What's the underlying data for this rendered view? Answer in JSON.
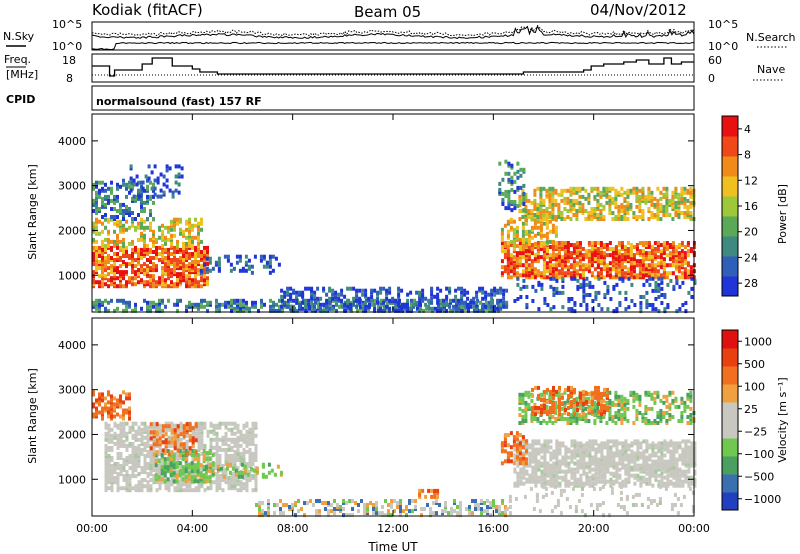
{
  "header": {
    "station": "Kodiak (fitACF)",
    "beam": "Beam 05",
    "date": "04/Nov/2012",
    "nsky_label": "N.Sky",
    "nsearch_label": "N.Search",
    "freq_label_1": "Freq.",
    "freq_label_2": "[MHz]",
    "nave_label": "Nave",
    "cpid_label": "CPID",
    "cpid_value": "normalsound (fast) 157 RF",
    "noise_ticks_left": [
      "10^5",
      "10^0"
    ],
    "noise_ticks_right": [
      "10^5",
      "10^0"
    ],
    "freq_ticks": [
      "18",
      "8"
    ],
    "nave_ticks": [
      "60",
      "0"
    ]
  },
  "chart_data": [
    {
      "type": "heatmap",
      "name": "power",
      "ylabel": "Slant Range [km]",
      "yticks": [
        1000,
        2000,
        3000,
        4000
      ],
      "ylim": [
        180,
        4600
      ],
      "xticks": [
        "00:00",
        "04:00",
        "08:00",
        "12:00",
        "16:00",
        "20:00",
        "00:00"
      ],
      "xlim": [
        0,
        24
      ],
      "colorbar_label": "Power [dB]",
      "colorbar_ticks": [
        "4",
        "8",
        "12",
        "16",
        "20",
        "24",
        "28"
      ],
      "colors": [
        "#1f35d8",
        "#2f5fb8",
        "#3f8a80",
        "#5aa858",
        "#9cc83a",
        "#f0c020",
        "#f08a18",
        "#f04818",
        "#e81010"
      ]
    },
    {
      "type": "heatmap",
      "name": "velocity",
      "ylabel": "Slant Range [km]",
      "yticks": [
        1000,
        2000,
        3000,
        4000
      ],
      "ylim": [
        180,
        4600
      ],
      "xticks": [
        "00:00",
        "04:00",
        "08:00",
        "12:00",
        "16:00",
        "20:00",
        "00:00"
      ],
      "xlim": [
        0,
        24
      ],
      "xlabel": "Time UT",
      "colorbar_label": "Velocity [m s⁻¹]",
      "colorbar_ticks": [
        "1000",
        "500",
        "100",
        "25",
        "−25",
        "−100",
        "−500",
        "−1000"
      ],
      "colors": [
        "#2040c0",
        "#3a70b0",
        "#4aa060",
        "#70c850",
        "#c8c8c0",
        "#c8c8c0",
        "#f0a040",
        "#f07020",
        "#e84010",
        "#e01010"
      ]
    }
  ]
}
